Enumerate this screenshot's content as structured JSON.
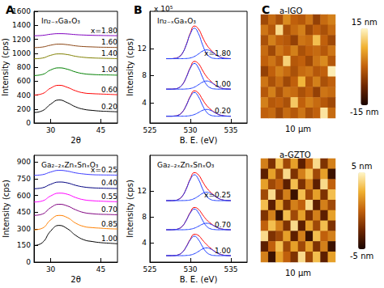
{
  "chart_data": [
    {
      "type": "line",
      "panel": "A",
      "title": "In₂₋ₓGaₓO₃",
      "x_label": "2θ",
      "y_label": "Intensity (cps)",
      "x": [
        25,
        27.5,
        30,
        32.5,
        35,
        37.5,
        40,
        42.5,
        45,
        47.5,
        50
      ],
      "xlim": [
        25,
        50
      ],
      "xticks": [
        30,
        45
      ],
      "ylim": [
        0,
        1600
      ],
      "yticks": [
        0,
        200,
        400,
        600,
        800,
        1000,
        1200,
        1400,
        1600
      ],
      "grid": false,
      "series": [
        {
          "name": "x=1.80",
          "color": "#8000c0",
          "values": [
            1250,
            1255,
            1272,
            1280,
            1276,
            1266,
            1260,
            1256,
            1254,
            1252,
            1251
          ]
        },
        {
          "name": "1.60",
          "color": "#8b4513",
          "values": [
            1080,
            1088,
            1115,
            1130,
            1122,
            1105,
            1095,
            1090,
            1086,
            1084,
            1082
          ]
        },
        {
          "name": "1.40",
          "color": "#808000",
          "values": [
            920,
            930,
            970,
            990,
            980,
            955,
            940,
            932,
            928,
            925,
            922
          ]
        },
        {
          "name": "1.00",
          "color": "#008000",
          "values": [
            680,
            695,
            760,
            790,
            770,
            730,
            705,
            695,
            690,
            688,
            685
          ]
        },
        {
          "name": "0.60",
          "color": "#ff0000",
          "values": [
            400,
            420,
            500,
            540,
            510,
            460,
            430,
            420,
            415,
            410,
            405
          ]
        },
        {
          "name": "0.20",
          "color": "#000000",
          "values": [
            150,
            175,
            270,
            330,
            290,
            230,
            195,
            180,
            170,
            165,
            160
          ]
        }
      ]
    },
    {
      "type": "line",
      "title": "Ga₂₋₂ₓZnₓSnₓO₃",
      "x_label": "2θ",
      "y_label": "Intensity (cps)",
      "x": [
        25,
        27.5,
        30,
        32.5,
        35,
        37.5,
        40,
        42.5,
        45,
        47.5,
        50
      ],
      "xlim": [
        25,
        50
      ],
      "xticks": [
        30,
        45
      ],
      "ylim": [
        0,
        960
      ],
      "yticks": [
        0,
        150,
        300,
        450,
        600,
        750,
        900
      ],
      "grid": false,
      "series": [
        {
          "name": "x=0.25",
          "color": "#3a3aff",
          "values": [
            780,
            786,
            810,
            825,
            818,
            802,
            792,
            786,
            784,
            783,
            782
          ]
        },
        {
          "name": "0.40",
          "color": "#000080",
          "values": [
            660,
            668,
            700,
            720,
            712,
            690,
            675,
            668,
            665,
            663,
            662
          ]
        },
        {
          "name": "0.55",
          "color": "#ff00ff",
          "values": [
            540,
            550,
            595,
            620,
            610,
            580,
            560,
            552,
            548,
            545,
            543
          ]
        },
        {
          "name": "0.70",
          "color": "#800080",
          "values": [
            420,
            432,
            490,
            520,
            505,
            470,
            445,
            435,
            430,
            428,
            425
          ]
        },
        {
          "name": "0.85",
          "color": "#ff8000",
          "values": [
            290,
            305,
            380,
            420,
            400,
            350,
            320,
            310,
            305,
            300,
            298
          ]
        },
        {
          "name": "1.00",
          "color": "#000000",
          "values": [
            150,
            175,
            280,
            330,
            300,
            240,
            200,
            185,
            175,
            170,
            165
          ]
        }
      ]
    },
    {
      "type": "line",
      "panel": "B",
      "axis_multiplier": "x 10⁵",
      "title": "In₂₋ₓGaₓO₃",
      "x_label": "B. E. (eV)",
      "y_label": "Intensity (cps)",
      "x": [
        527,
        527.5,
        528,
        528.5,
        529,
        529.5,
        530,
        530.5,
        531,
        531.5,
        532,
        532.5,
        533,
        533.5,
        534,
        534.5,
        535
      ],
      "xlim": [
        525,
        537
      ],
      "xticks": [
        525,
        530,
        535
      ],
      "ylim": [
        1,
        17.5
      ],
      "yticks": [
        4,
        8,
        12
      ],
      "grid": false,
      "spectra": [
        {
          "name": "x=1.80",
          "series": [
            {
              "color": "#ff0000",
              "values": [
                10.5,
                10.5,
                10.54,
                10.7,
                11.28,
                12.6,
                14.3,
                15.33,
                14.89,
                13.69,
                12.57,
                11.82,
                11.24,
                10.83,
                10.61,
                10.53,
                10.51
              ]
            },
            {
              "color": "#1f3fff",
              "values": [
                10.5,
                10.5,
                10.54,
                10.7,
                11.27,
                12.57,
                14.19,
                15,
                14.19,
                12.57,
                11.27,
                10.7,
                10.54,
                10.5,
                10.5,
                10.5,
                10.5
              ]
            },
            {
              "color": "#1f3fff",
              "values": [
                10.5,
                10.5,
                10.5,
                10.5,
                10.51,
                10.53,
                10.61,
                10.83,
                11.2,
                11.62,
                11.8,
                11.62,
                11.2,
                10.83,
                10.61,
                10.53,
                10.51
              ]
            }
          ]
        },
        {
          "name": "1.00",
          "series": [
            {
              "color": "#ff0000",
              "values": [
                6,
                6,
                6.03,
                6.17,
                6.65,
                7.78,
                9.22,
                10.1,
                9.77,
                8.78,
                7.85,
                7.2,
                6.68,
                6.3,
                6.1,
                6.03,
                6
              ]
            },
            {
              "color": "#1f3fff",
              "values": [
                6,
                6,
                6.03,
                6.17,
                6.65,
                7.75,
                9.12,
                9.8,
                9.12,
                7.75,
                6.65,
                6.17,
                6.03,
                6,
                6,
                6,
                6
              ]
            },
            {
              "color": "#1f3fff",
              "values": [
                6,
                6,
                6,
                6,
                6,
                6.03,
                6.1,
                6.3,
                6.65,
                7.03,
                7.2,
                7.03,
                6.65,
                6.3,
                6.1,
                6.03,
                6
              ]
            }
          ]
        },
        {
          "name": "0.20",
          "series": [
            {
              "color": "#ff0000",
              "values": [
                2,
                2,
                2.03,
                2.15,
                2.6,
                3.63,
                4.96,
                5.75,
                5.41,
                4.47,
                3.6,
                3.01,
                2.57,
                2.25,
                2.09,
                2.02,
                2
              ]
            },
            {
              "color": "#1f3fff",
              "values": [
                2,
                2,
                2.03,
                2.15,
                2.6,
                3.61,
                4.87,
                5.5,
                4.87,
                3.61,
                2.6,
                2.15,
                2.03,
                2,
                2,
                2,
                2
              ]
            },
            {
              "color": "#1f3fff",
              "values": [
                2,
                2,
                2,
                2,
                2,
                2.02,
                2.09,
                2.25,
                2.54,
                2.86,
                3,
                2.86,
                2.54,
                2.25,
                2.09,
                2.02,
                2
              ]
            }
          ]
        }
      ]
    },
    {
      "type": "line",
      "title": "Ga₂₋₂ₓZnₓSnₓO₃",
      "x_label": "B. E. (eV)",
      "y_label": "Intensity (cps)",
      "x": [
        527,
        527.5,
        528,
        528.5,
        529,
        529.5,
        530,
        530.5,
        531,
        531.5,
        532,
        532.5,
        533,
        533.5,
        534,
        534.5,
        535
      ],
      "xlim": [
        525,
        537
      ],
      "xticks": [
        525,
        530,
        535
      ],
      "ylim": [
        1,
        17.5
      ],
      "yticks": [
        4,
        8,
        12
      ],
      "grid": false,
      "spectra": [
        {
          "name": "x=0.25",
          "series": [
            {
              "color": "#ff0000",
              "values": [
                10.5,
                10.5,
                10.53,
                10.68,
                11.19,
                12.37,
                13.89,
                14.83,
                14.48,
                13.46,
                12.48,
                11.8,
                11.23,
                10.83,
                10.61,
                10.53,
                10.51
              ]
            },
            {
              "color": "#1f3fff",
              "values": [
                10.5,
                10.5,
                10.53,
                10.68,
                11.18,
                12.34,
                13.78,
                14.5,
                13.78,
                12.34,
                11.18,
                10.68,
                10.53,
                10.5,
                10.5,
                10.5,
                10.5
              ]
            },
            {
              "color": "#1f3fff",
              "values": [
                10.5,
                10.5,
                10.5,
                10.5,
                10.51,
                10.53,
                10.61,
                10.83,
                11.2,
                11.62,
                11.8,
                11.62,
                11.2,
                10.83,
                10.61,
                10.53,
                10.51
              ]
            }
          ]
        },
        {
          "name": "0.70",
          "series": [
            {
              "color": "#ff0000",
              "values": [
                6,
                6,
                6.03,
                6.14,
                6.54,
                7.49,
                8.71,
                9.45,
                9.16,
                8.33,
                7.54,
                7,
                6.57,
                6.25,
                6.09,
                6.02,
                6
              ]
            },
            {
              "color": "#1f3fff",
              "values": [
                6,
                6,
                6.03,
                6.14,
                6.54,
                7.47,
                8.62,
                9.2,
                8.62,
                7.47,
                6.54,
                6.14,
                6.03,
                6,
                6,
                6,
                6
              ]
            },
            {
              "color": "#1f3fff",
              "values": [
                6,
                6,
                6,
                6,
                6,
                6.02,
                6.09,
                6.25,
                6.54,
                6.86,
                7,
                6.86,
                6.54,
                6.25,
                6.09,
                6.02,
                6
              ]
            }
          ]
        },
        {
          "name": "1.00",
          "series": [
            {
              "color": "#ff0000",
              "values": [
                2,
                2,
                2.02,
                2.13,
                2.51,
                3.41,
                4.56,
                5.3,
                5.11,
                4.41,
                3.71,
                3.16,
                2.67,
                2.3,
                2.1,
                2.03,
                2
              ]
            },
            {
              "color": "#1f3fff",
              "values": [
                2,
                2,
                2.02,
                2.13,
                2.51,
                3.38,
                4.46,
                5,
                4.46,
                3.38,
                2.51,
                2.13,
                2.02,
                2,
                2,
                2,
                2
              ]
            },
            {
              "color": "#1f3fff",
              "values": [
                2,
                2,
                2,
                2,
                2,
                2.03,
                2.1,
                2.3,
                2.65,
                3.03,
                3.2,
                3.03,
                2.65,
                2.3,
                2.1,
                2.03,
                2
              ]
            }
          ]
        }
      ]
    },
    {
      "type": "heatmap",
      "panel": "C",
      "title": "a-IGO",
      "x_label": "10 μm",
      "tick_labels": false,
      "color_range": [
        -15,
        15
      ],
      "color_ticks": [
        {
          "value": -15,
          "label": "-15 nm"
        },
        {
          "value": 15,
          "label": "15 nm"
        }
      ],
      "cells": [
        [
          -3,
          1,
          -2,
          4,
          0,
          -1,
          2,
          -4,
          1,
          3
        ],
        [
          2,
          -1,
          12,
          -2,
          1,
          3,
          -3,
          0,
          -2,
          1
        ],
        [
          -2,
          3,
          0,
          -1,
          -4,
          2,
          1,
          9,
          0,
          -3
        ],
        [
          1,
          -3,
          2,
          0,
          3,
          -2,
          0,
          1,
          -1,
          2
        ],
        [
          0,
          2,
          -1,
          11,
          -1,
          0,
          -3,
          2,
          4,
          -1
        ],
        [
          -4,
          0,
          3,
          1,
          -2,
          1,
          2,
          -1,
          0,
          14
        ],
        [
          2,
          -2,
          1,
          -3,
          0,
          8,
          -1,
          3,
          -2,
          0
        ],
        [
          -1,
          3,
          -2,
          2,
          1,
          -2,
          0,
          -4,
          2,
          1
        ],
        [
          3,
          -1,
          0,
          -2,
          10,
          0,
          3,
          1,
          -1,
          -3
        ],
        [
          0,
          1,
          -3,
          1,
          -1,
          2,
          -2,
          0,
          13,
          1
        ]
      ]
    },
    {
      "type": "heatmap",
      "title": "a-GZTO",
      "x_label": "10 μm",
      "tick_labels": false,
      "color_range": [
        -5,
        5
      ],
      "color_ticks": [
        {
          "value": -5,
          "label": "-5 nm"
        },
        {
          "value": 5,
          "label": "5 nm"
        }
      ],
      "cells": [
        [
          1,
          -2,
          3,
          -1,
          2,
          -3,
          0,
          4,
          -2,
          1
        ],
        [
          -3,
          2,
          -1,
          4,
          -2,
          1,
          3,
          -1,
          2,
          -4
        ],
        [
          2,
          -1,
          0,
          -3,
          3,
          -2,
          1,
          -3,
          4,
          0
        ],
        [
          -1,
          4,
          -2,
          1,
          -4,
          3,
          -1,
          2,
          -2,
          3
        ],
        [
          3,
          -3,
          2,
          -2,
          1,
          0,
          4,
          -3,
          1,
          -1
        ],
        [
          -2,
          1,
          -4,
          3,
          -1,
          2,
          -2,
          1,
          -3,
          2
        ],
        [
          0,
          3,
          1,
          -2,
          4,
          -3,
          2,
          -1,
          3,
          -2
        ],
        [
          4,
          -2,
          -1,
          2,
          -3,
          1,
          -4,
          3,
          0,
          1
        ],
        [
          -3,
          0,
          3,
          -1,
          2,
          -1,
          2,
          -2,
          1,
          -4
        ],
        [
          1,
          -4,
          2,
          0,
          -2,
          4,
          -1,
          3,
          -3,
          2
        ]
      ]
    }
  ]
}
